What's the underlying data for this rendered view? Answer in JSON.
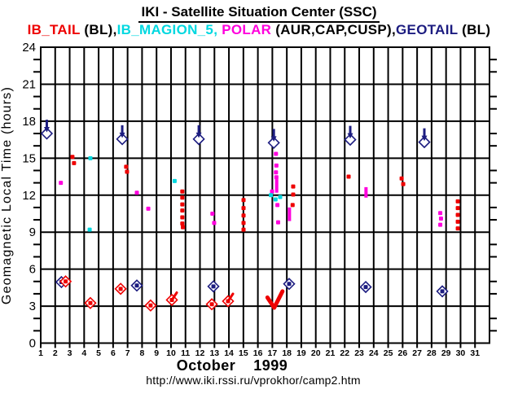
{
  "header": {
    "title": "IKI - Satellite Situation Center (SSC)"
  },
  "legend": {
    "segments": [
      {
        "text": "IB_TAIL",
        "color": "#ee0000"
      },
      {
        "text": " (BL),",
        "color": "#000000"
      },
      {
        "text": "IB_MAGION_5,",
        "color": "#00d8e0"
      },
      {
        "text": " POLAR",
        "color": "#ff00dd"
      },
      {
        "text": " (AUR,CAP,CUSP),",
        "color": "#000000"
      },
      {
        "text": "GEOTAIL",
        "color": "#1c1c80"
      },
      {
        "text": " (BL)",
        "color": "#000000"
      }
    ]
  },
  "footer": {
    "month_label": "October    1999",
    "url": "http://www.iki.rssi.ru/vprokhor/camp2.htm"
  },
  "chart_data": {
    "type": "scatter",
    "title": "IKI - Satellite Situation Center (SSC)",
    "xlabel": "October 1999",
    "ylabel": "Geomagnetic Local Time (hours)",
    "xlim": [
      1,
      32
    ],
    "ylim": [
      0,
      24
    ],
    "x_ticks": [
      1,
      2,
      3,
      4,
      5,
      6,
      7,
      8,
      9,
      10,
      11,
      12,
      13,
      14,
      15,
      16,
      17,
      18,
      19,
      20,
      21,
      22,
      23,
      24,
      25,
      26,
      27,
      28,
      29,
      30,
      31
    ],
    "y_ticks": [
      0,
      3,
      6,
      9,
      12,
      15,
      18,
      21,
      24
    ],
    "y_minor_step": 1,
    "grid": true,
    "axis_color": "#000000",
    "series": [
      {
        "name": "IB_TAIL (BL)",
        "color": "#ee0000",
        "dot_diamonds": [
          [
            2.72,
            5.0
          ],
          [
            4.43,
            3.25
          ],
          [
            6.52,
            4.4
          ],
          [
            8.59,
            3.05
          ],
          [
            10.06,
            3.5
          ],
          [
            12.82,
            3.15
          ],
          [
            13.94,
            3.4
          ]
        ],
        "tails": [
          [
            10.06,
            3.5
          ],
          [
            13.94,
            3.4
          ]
        ],
        "checkmark": [
          [
            16.66,
            3.7
          ],
          [
            17.13,
            2.87
          ],
          [
            17.7,
            4.2
          ]
        ],
        "dots": [
          [
            3.19,
            15.1
          ],
          [
            3.3,
            14.6
          ],
          [
            6.9,
            14.3
          ],
          [
            6.96,
            13.9
          ],
          [
            10.78,
            12.3
          ],
          [
            10.78,
            11.8
          ],
          [
            10.78,
            11.25
          ],
          [
            10.78,
            10.75
          ],
          [
            10.78,
            10.2
          ],
          [
            10.78,
            9.7
          ],
          [
            10.82,
            9.4
          ],
          [
            15.01,
            11.6
          ],
          [
            15.01,
            10.95
          ],
          [
            15.01,
            10.35
          ],
          [
            15.01,
            9.75
          ],
          [
            15.01,
            9.2
          ],
          [
            18.44,
            12.7
          ],
          [
            18.44,
            12.05
          ],
          [
            18.4,
            11.2
          ],
          [
            22.27,
            13.5
          ],
          [
            25.93,
            13.35
          ],
          [
            26.04,
            12.9
          ],
          [
            29.81,
            11.5
          ],
          [
            29.81,
            10.95
          ],
          [
            29.81,
            10.4
          ],
          [
            29.81,
            9.85
          ],
          [
            29.81,
            9.3
          ]
        ]
      },
      {
        "name": "IB_MAGION_5",
        "color": "#00d8e0",
        "dots": [
          [
            4.43,
            15.0
          ],
          [
            4.38,
            9.2
          ],
          [
            10.25,
            13.15
          ],
          [
            16.9,
            12.0
          ],
          [
            17.22,
            11.65
          ],
          [
            17.54,
            11.85
          ]
        ]
      },
      {
        "name": "POLAR (AUR,CAP,CUSP)",
        "color": "#ff00dd",
        "dots": [
          [
            2.39,
            13.0
          ],
          [
            7.64,
            12.2
          ],
          [
            8.43,
            10.9
          ],
          [
            12.86,
            10.5
          ],
          [
            12.98,
            9.75
          ],
          [
            17.25,
            15.35
          ],
          [
            17.28,
            14.4
          ],
          [
            17.25,
            13.85
          ],
          [
            17.28,
            13.45
          ],
          [
            16.98,
            12.3
          ],
          [
            17.35,
            11.2
          ],
          [
            17.4,
            9.8
          ],
          [
            28.6,
            10.55
          ],
          [
            28.65,
            10.1
          ],
          [
            28.6,
            9.6
          ]
        ],
        "streaks": [
          [
            17.3,
            12.2,
            13.3
          ],
          [
            18.18,
            9.9,
            11.0
          ],
          [
            23.47,
            11.8,
            12.65
          ]
        ]
      },
      {
        "name": "GEOTAIL (BL)",
        "color": "#1c1c80",
        "flag_diamonds": [
          [
            1.42,
            17.0
          ],
          [
            6.63,
            16.55
          ],
          [
            11.92,
            16.55
          ],
          [
            17.1,
            16.25
          ],
          [
            22.38,
            16.5
          ],
          [
            27.5,
            16.3
          ]
        ],
        "dot_diamonds": [
          [
            2.43,
            4.95
          ],
          [
            7.64,
            4.67
          ],
          [
            12.93,
            4.6
          ],
          [
            18.16,
            4.8
          ],
          [
            23.45,
            4.55
          ],
          [
            28.74,
            4.2
          ]
        ]
      }
    ]
  }
}
